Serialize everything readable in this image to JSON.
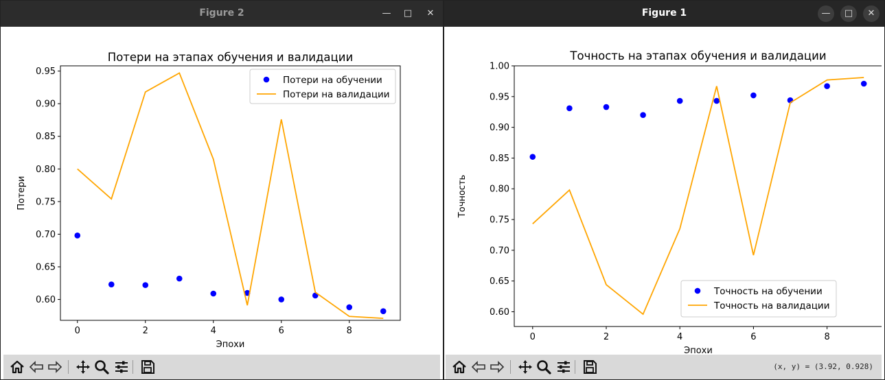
{
  "windows": {
    "left": {
      "title": "Figure 2",
      "controls": {
        "minimize": "—",
        "maximize": "□",
        "close": "✕"
      }
    },
    "right": {
      "title": "Figure 1",
      "controls": {
        "minimize": "—",
        "maximize": "□",
        "close": "✕"
      },
      "coords_readout": "(x, y) = (3.92, 0.928)"
    }
  },
  "toolbar": {
    "buttons": [
      "home-icon",
      "back-arrow-icon",
      "forward-arrow-icon",
      "pan-icon",
      "zoom-icon",
      "configure-subplots-icon",
      "save-icon"
    ]
  },
  "chart_data": [
    {
      "type": "scatter+line",
      "title": "Потери на этапах обучения и валидации",
      "xlabel": "Эпохи",
      "ylabel": "Потери",
      "x": [
        0,
        1,
        2,
        3,
        4,
        5,
        6,
        7,
        8,
        9
      ],
      "xlim": [
        -0.5,
        9.5
      ],
      "ylim": [
        0.568,
        0.958
      ],
      "xticks": [
        "0",
        "2",
        "4",
        "6",
        "8"
      ],
      "yticks": [
        "0.60",
        "0.65",
        "0.70",
        "0.75",
        "0.80",
        "0.85",
        "0.90",
        "0.95"
      ],
      "legend_position": "upper right",
      "series": [
        {
          "name": "Потери на обучении",
          "style": "points",
          "color": "#0000ff",
          "values": [
            0.698,
            0.623,
            0.622,
            0.632,
            0.609,
            0.61,
            0.6,
            0.606,
            0.588,
            0.582
          ]
        },
        {
          "name": "Потери на валидации",
          "style": "line",
          "color": "#ffa500",
          "values": [
            0.8,
            0.754,
            0.918,
            0.947,
            0.815,
            0.591,
            0.876,
            0.611,
            0.574,
            0.571
          ]
        }
      ]
    },
    {
      "type": "scatter+line",
      "title": "Точность на этапах обучения и валидации",
      "xlabel": "Эпохи",
      "ylabel": "Точность",
      "x": [
        0,
        1,
        2,
        3,
        4,
        5,
        6,
        7,
        8,
        9
      ],
      "xlim": [
        -0.5,
        9.5
      ],
      "ylim": [
        0.576,
        1.0
      ],
      "xticks": [
        "0",
        "2",
        "4",
        "6",
        "8"
      ],
      "yticks": [
        "0.60",
        "0.65",
        "0.70",
        "0.75",
        "0.80",
        "0.85",
        "0.90",
        "0.95",
        "1.00"
      ],
      "legend_position": "lower right",
      "series": [
        {
          "name": "Точность на обучении",
          "style": "points",
          "color": "#0000ff",
          "values": [
            0.852,
            0.931,
            0.933,
            0.92,
            0.943,
            0.943,
            0.952,
            0.944,
            0.967,
            0.971
          ]
        },
        {
          "name": "Точность на валидации",
          "style": "line",
          "color": "#ffa500",
          "values": [
            0.743,
            0.798,
            0.644,
            0.596,
            0.735,
            0.967,
            0.692,
            0.94,
            0.977,
            0.981
          ]
        }
      ]
    }
  ]
}
